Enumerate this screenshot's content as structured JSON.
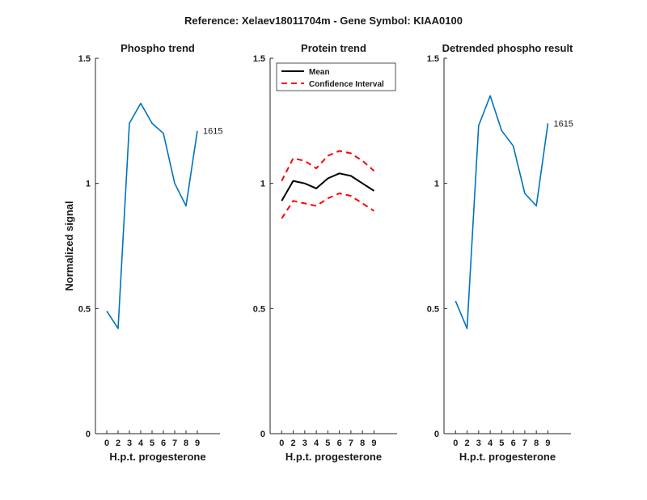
{
  "figure": {
    "title": "Reference:  Xelaev18011704m - Gene Symbol:  KIAA0100"
  },
  "chart_data": [
    {
      "type": "line",
      "title": "Phospho trend",
      "xlabel": "H.p.t. progesterone",
      "ylabel": "Normalized signal",
      "xlim": [
        -1,
        10
      ],
      "ylim": [
        0,
        1.5
      ],
      "xticks": [
        0,
        2,
        3,
        4,
        5,
        6,
        7,
        8,
        9
      ],
      "xtick_labels": [
        "0",
        "2",
        "3",
        "4",
        "5",
        "6",
        "7",
        "8",
        "9"
      ],
      "yticks": [
        0,
        0.5,
        1,
        1.5
      ],
      "ytick_labels": [
        "0",
        "0.5",
        "1",
        "1.5"
      ],
      "series": [
        {
          "name": "",
          "color": "#0072BD",
          "style": "solid",
          "x": [
            0,
            1,
            2,
            3,
            4,
            5,
            6,
            7,
            8
          ],
          "y": [
            0.49,
            0.42,
            1.24,
            1.32,
            1.24,
            1.2,
            1.0,
            0.91,
            1.21
          ]
        }
      ],
      "annotations": [
        {
          "text": "1615",
          "x": 8,
          "y": 1.21
        }
      ],
      "legend": null
    },
    {
      "type": "line",
      "title": "Protein trend",
      "xlabel": "H.p.t. progesterone",
      "ylabel": "",
      "xlim": [
        -1,
        10
      ],
      "ylim": [
        0,
        1.5
      ],
      "xticks": [
        0,
        2,
        3,
        4,
        5,
        6,
        7,
        8,
        9
      ],
      "xtick_labels": [
        "0",
        "2",
        "3",
        "4",
        "5",
        "6",
        "7",
        "8",
        "9"
      ],
      "yticks": [
        0,
        0.5,
        1,
        1.5
      ],
      "ytick_labels": [
        "0",
        "0.5",
        "1",
        "1.5"
      ],
      "series": [
        {
          "name": "Mean",
          "color": "#000000",
          "style": "solid",
          "x": [
            0,
            1,
            2,
            3,
            4,
            5,
            6,
            7,
            8
          ],
          "y": [
            0.93,
            1.01,
            1.0,
            0.98,
            1.02,
            1.04,
            1.03,
            1.0,
            0.97
          ]
        },
        {
          "name": "Confidence Interval",
          "color": "#FF0000",
          "style": "dashed",
          "x": [
            0,
            1,
            2,
            3,
            4,
            5,
            6,
            7,
            8
          ],
          "y": [
            1.01,
            1.1,
            1.09,
            1.06,
            1.11,
            1.13,
            1.12,
            1.09,
            1.05
          ]
        },
        {
          "name": "",
          "color": "#FF0000",
          "style": "dashed",
          "x": [
            0,
            1,
            2,
            3,
            4,
            5,
            6,
            7,
            8
          ],
          "y": [
            0.86,
            0.93,
            0.92,
            0.91,
            0.94,
            0.96,
            0.95,
            0.92,
            0.89
          ]
        }
      ],
      "annotations": [],
      "legend": {
        "placement": "top-left",
        "entries": [
          "Mean",
          "Confidence Interval"
        ]
      }
    },
    {
      "type": "line",
      "title": "Detrended phospho result",
      "xlabel": "H.p.t. progesterone",
      "ylabel": "",
      "xlim": [
        -1,
        10
      ],
      "ylim": [
        0,
        1.5
      ],
      "xticks": [
        0,
        2,
        3,
        4,
        5,
        6,
        7,
        8,
        9
      ],
      "xtick_labels": [
        "0",
        "2",
        "3",
        "4",
        "5",
        "6",
        "7",
        "8",
        "9"
      ],
      "yticks": [
        0,
        0.5,
        1,
        1.5
      ],
      "ytick_labels": [
        "0",
        "0.5",
        "1",
        "1.5"
      ],
      "series": [
        {
          "name": "",
          "color": "#0072BD",
          "style": "solid",
          "x": [
            0,
            1,
            2,
            3,
            4,
            5,
            6,
            7,
            8
          ],
          "y": [
            0.53,
            0.42,
            1.23,
            1.35,
            1.21,
            1.15,
            0.96,
            0.91,
            1.24
          ]
        }
      ],
      "annotations": [
        {
          "text": "1615",
          "x": 8,
          "y": 1.24
        }
      ],
      "legend": null
    }
  ]
}
